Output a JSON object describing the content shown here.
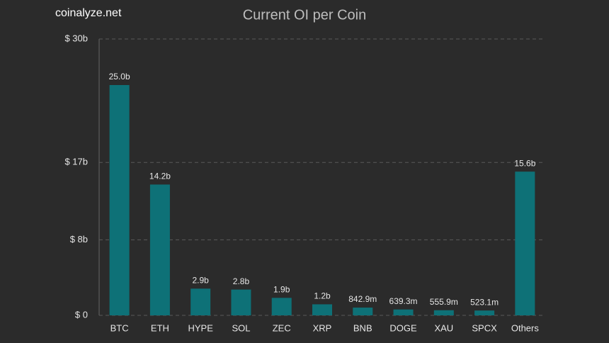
{
  "brand": "coinalyze.net",
  "chart_data": {
    "type": "bar",
    "title": "Current OI per Coin",
    "categories": [
      "BTC",
      "ETH",
      "HYPE",
      "SOL",
      "ZEC",
      "XRP",
      "BNB",
      "DOGE",
      "XAU",
      "SPCX",
      "Others"
    ],
    "values": [
      25.0,
      14.2,
      2.9,
      2.8,
      1.9,
      1.2,
      0.8429,
      0.6393,
      0.5559,
      0.5231,
      15.6
    ],
    "value_labels": [
      "25.0b",
      "14.2b",
      "2.9b",
      "2.8b",
      "1.9b",
      "1.2b",
      "842.9m",
      "639.3m",
      "555.9m",
      "523.1m",
      "15.6b"
    ],
    "color": "#0e7177",
    "ylim": [
      0,
      30
    ],
    "yticks": [
      {
        "value": 0,
        "label": "$ 0"
      },
      {
        "value": 8.2,
        "label": "$ 8b"
      },
      {
        "value": 16.6,
        "label": "$ 17b"
      },
      {
        "value": 30,
        "label": "$ 30b"
      }
    ],
    "grid": true
  }
}
